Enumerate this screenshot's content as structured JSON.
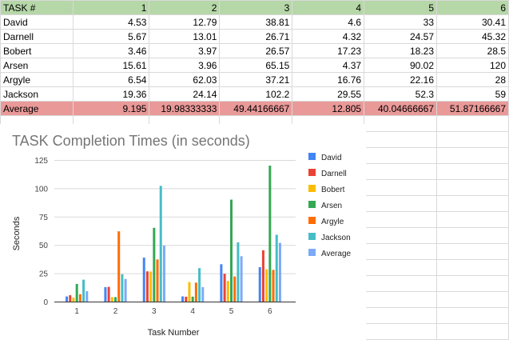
{
  "sheet": {
    "header": [
      "TASK #",
      "1",
      "2",
      "3",
      "4",
      "5",
      "6"
    ],
    "rows": [
      {
        "label": "David",
        "values": [
          "4.53",
          "12.79",
          "38.81",
          "4.6",
          "33",
          "30.41"
        ]
      },
      {
        "label": "Darnell",
        "values": [
          "5.67",
          "13.01",
          "26.71",
          "4.32",
          "24.57",
          "45.32"
        ]
      },
      {
        "label": "Bobert",
        "values": [
          "3.46",
          "3.97",
          "26.57",
          "17.23",
          "18.23",
          "28.5"
        ]
      },
      {
        "label": "Arsen",
        "values": [
          "15.61",
          "3.96",
          "65.15",
          "4.37",
          "90.02",
          "120"
        ]
      },
      {
        "label": "Argyle",
        "values": [
          "6.54",
          "62.03",
          "37.21",
          "16.76",
          "22.16",
          "28"
        ]
      },
      {
        "label": "Jackson",
        "values": [
          "19.36",
          "24.14",
          "102.2",
          "29.55",
          "52.3",
          "59"
        ]
      }
    ],
    "average": {
      "label": "Average",
      "values": [
        "9.195",
        "19.98333333",
        "49.44166667",
        "12.805",
        "40.04666667",
        "51.87166667"
      ]
    }
  },
  "chart_data": {
    "type": "bar",
    "title": "TASK Completion Times (in seconds)",
    "xlabel": "Task Number",
    "ylabel": "Seconds",
    "categories": [
      "1",
      "2",
      "3",
      "4",
      "5",
      "6"
    ],
    "ylim": [
      0,
      125
    ],
    "yticks": [
      0,
      25,
      50,
      75,
      100,
      125
    ],
    "grid": true,
    "legend": "right",
    "series": [
      {
        "name": "David",
        "color": "#4285f4",
        "values": [
          4.53,
          12.79,
          38.81,
          4.6,
          33,
          30.41
        ]
      },
      {
        "name": "Darnell",
        "color": "#ea4335",
        "values": [
          5.67,
          13.01,
          26.71,
          4.32,
          24.57,
          45.32
        ]
      },
      {
        "name": "Bobert",
        "color": "#fbbc04",
        "values": [
          3.46,
          3.97,
          26.57,
          17.23,
          18.23,
          28.5
        ]
      },
      {
        "name": "Arsen",
        "color": "#34a853",
        "values": [
          15.61,
          3.96,
          65.15,
          4.37,
          90.02,
          120
        ]
      },
      {
        "name": "Argyle",
        "color": "#ff6d01",
        "values": [
          6.54,
          62.03,
          37.21,
          16.76,
          22.16,
          28
        ]
      },
      {
        "name": "Jackson",
        "color": "#46bdc6",
        "values": [
          19.36,
          24.14,
          102.2,
          29.55,
          52.3,
          59
        ]
      },
      {
        "name": "Average",
        "color": "#7baaf7",
        "values": [
          9.195,
          19.98333333,
          49.44166667,
          12.805,
          40.04666667,
          51.87166667
        ]
      }
    ]
  }
}
